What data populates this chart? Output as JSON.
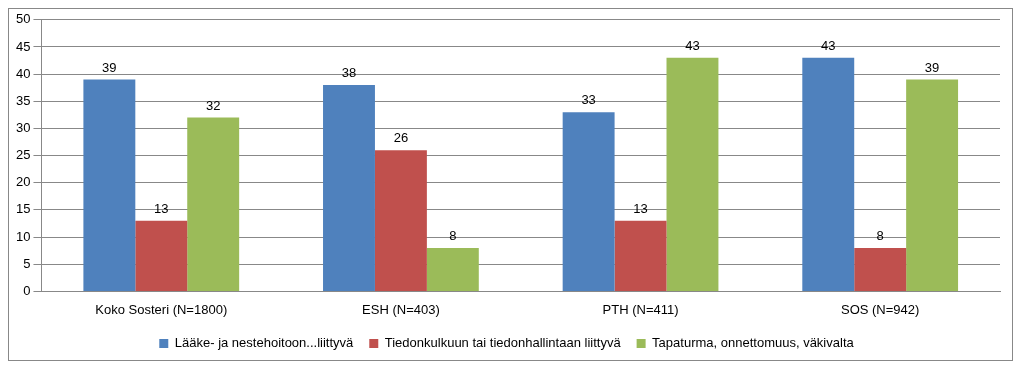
{
  "chart_data": {
    "type": "bar",
    "categories": [
      "Koko Sosteri (N=1800)",
      "ESH (N=403)",
      "PTH (N=411)",
      "SOS (N=942)"
    ],
    "series": [
      {
        "name": "Lääke- ja nestehoitoon...liittyvä",
        "color": "#4f81bd",
        "values": [
          39,
          38,
          33,
          43
        ]
      },
      {
        "name": "Tiedonkulkuun tai tiedonhallintaan liittyvä",
        "color": "#c0504d",
        "values": [
          13,
          26,
          13,
          8
        ]
      },
      {
        "name": "Tapaturma, onnettomuus, väkivalta",
        "color": "#9bbb59",
        "values": [
          32,
          8,
          43,
          39
        ]
      }
    ],
    "ylim": [
      0,
      50
    ],
    "yticks": [
      0,
      5,
      10,
      15,
      20,
      25,
      30,
      35,
      40,
      45,
      50
    ],
    "grid": "y",
    "legend": "bottom",
    "data_labels": true
  }
}
